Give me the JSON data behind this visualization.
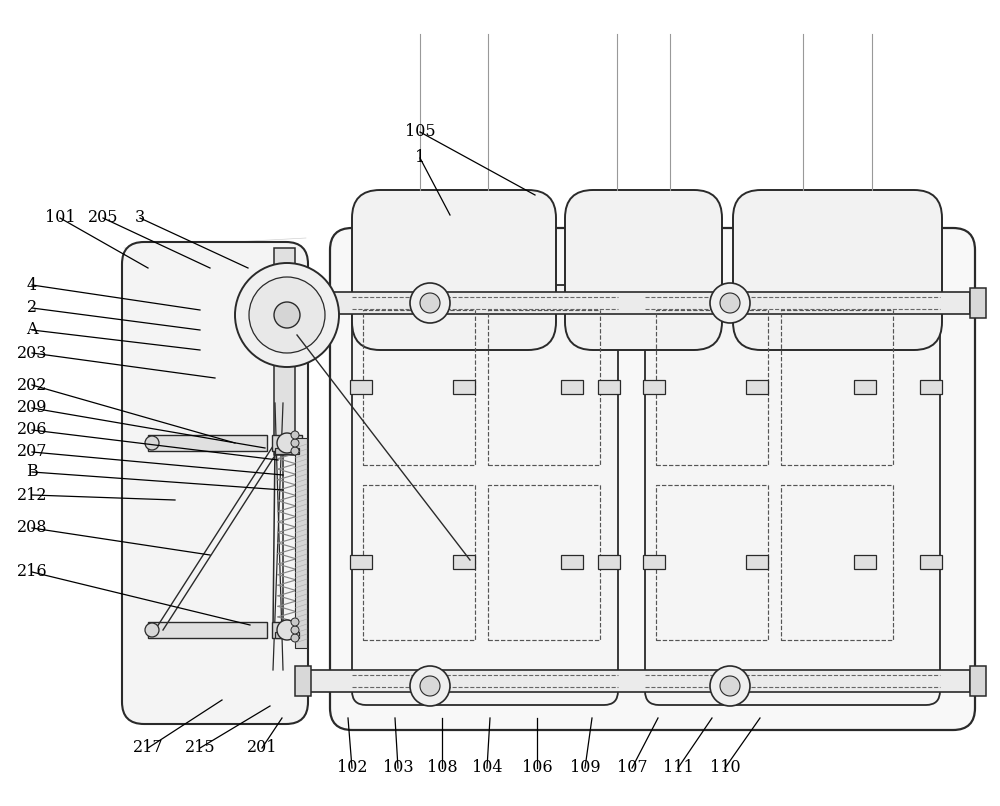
{
  "bg_color": "#ffffff",
  "lc": "#2a2a2a",
  "gray1": "#f0f0f0",
  "gray2": "#e0e0e0",
  "gray3": "#c8c8c8",
  "dashed": "#555555",
  "figsize": [
    10.0,
    8.06
  ],
  "dpi": 100,
  "labels_left": [
    [
      "101",
      60,
      218
    ],
    [
      "205",
      103,
      218
    ],
    [
      "3",
      140,
      218
    ],
    [
      "4",
      32,
      285
    ],
    [
      "2",
      32,
      308
    ],
    [
      "A",
      32,
      330
    ],
    [
      "203",
      32,
      353
    ],
    [
      "202",
      32,
      385
    ],
    [
      "209",
      32,
      408
    ],
    [
      "206",
      32,
      430
    ],
    [
      "207",
      32,
      452
    ],
    [
      "B",
      32,
      472
    ],
    [
      "212",
      32,
      495
    ],
    [
      "208",
      32,
      528
    ],
    [
      "216",
      32,
      572
    ]
  ],
  "labels_bottom_left": [
    [
      "217",
      148,
      748
    ],
    [
      "215",
      200,
      748
    ],
    [
      "201",
      262,
      748
    ]
  ],
  "labels_bottom": [
    [
      "102",
      352,
      768
    ],
    [
      "103",
      398,
      768
    ],
    [
      "108",
      442,
      768
    ],
    [
      "104",
      487,
      768
    ],
    [
      "106",
      537,
      768
    ],
    [
      "109",
      585,
      768
    ],
    [
      "107",
      632,
      768
    ],
    [
      "111",
      678,
      768
    ],
    [
      "110",
      725,
      768
    ]
  ],
  "label_105": [
    420,
    132
  ],
  "label_1": [
    420,
    158
  ]
}
